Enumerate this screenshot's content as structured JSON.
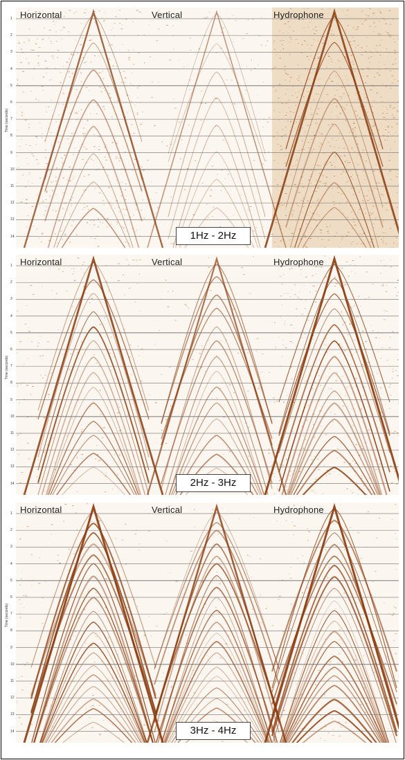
{
  "components": [
    "Horizontal",
    "Vertical",
    "Hydrophone"
  ],
  "ylabel": "Time (seconds)",
  "ticks": [
    "1",
    "2",
    "3",
    "4",
    "5",
    "6",
    "7",
    "8",
    "9",
    "10",
    "11",
    "12",
    "13",
    "14"
  ],
  "panels": [
    {
      "freq": "1Hz - 2Hz"
    },
    {
      "freq": "2Hz - 3Hz"
    },
    {
      "freq": "3Hz - 4Hz"
    }
  ],
  "colors": {
    "wavelet": "#8a3a0c",
    "noise": "#b0703a",
    "background": "#fbf6ef",
    "gridline": "#6b6b6b"
  }
}
